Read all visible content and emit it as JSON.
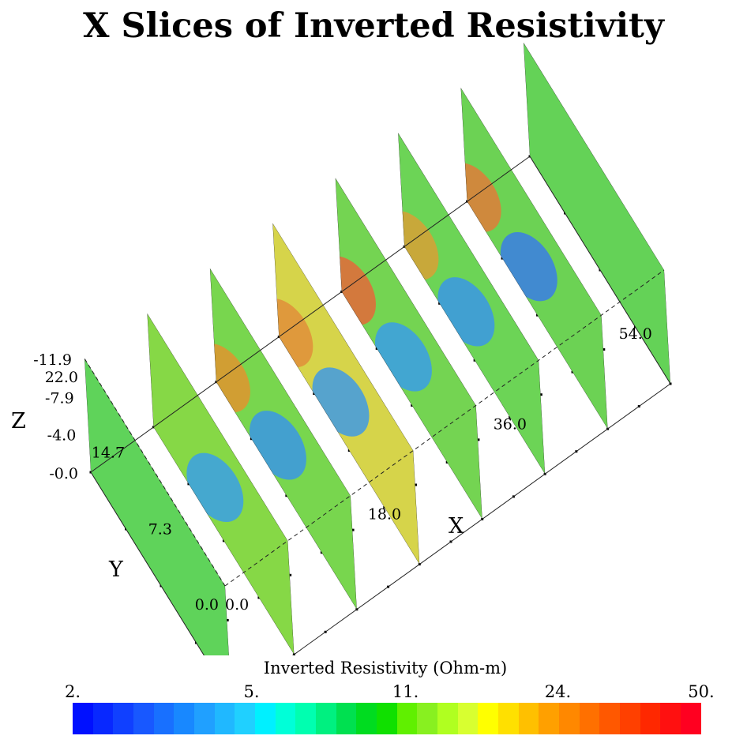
{
  "chart_data": {
    "type": "heatmap",
    "title": "X Slices of Inverted Resistivity",
    "xlabel": "X",
    "ylabel": "Y",
    "zlabel": "Z",
    "x_ticks": [
      "0.0",
      "18.0",
      "36.0",
      "54.0"
    ],
    "y_ticks": [
      "0.0",
      "7.3",
      "14.7",
      "22.0"
    ],
    "z_ticks": [
      "-0.0",
      "-4.0",
      "-7.9",
      "-11.9"
    ],
    "xlim": [
      0,
      63
    ],
    "ylim": [
      0,
      22
    ],
    "zlim": [
      -11.9,
      0
    ],
    "slices": [
      {
        "x": 0,
        "background": "#5fd35a",
        "anomalies": []
      },
      {
        "x": 9,
        "background": "#86d846",
        "anomalies": [
          {
            "y": 12,
            "z": -4.5,
            "value": 5,
            "color": "#3aa0e8"
          }
        ]
      },
      {
        "x": 18,
        "background": "#78d64e",
        "anomalies": [
          {
            "y": 12,
            "z": -4.2,
            "value": 5,
            "color": "#3a96e6"
          },
          {
            "y": 21,
            "z": -1.5,
            "value": 24,
            "color": "#e0942f"
          }
        ]
      },
      {
        "x": 27,
        "background": "#d6d44a",
        "anomalies": [
          {
            "y": 12,
            "z": -4.0,
            "value": 5,
            "color": "#3f9ae4"
          },
          {
            "y": 21,
            "z": -1.5,
            "value": 30,
            "color": "#e08e3a"
          }
        ]
      },
      {
        "x": 36,
        "background": "#74d452",
        "anomalies": [
          {
            "y": 12,
            "z": -4.0,
            "value": 5,
            "color": "#3a9de8"
          },
          {
            "y": 21,
            "z": -1.2,
            "value": 40,
            "color": "#e4683a"
          }
        ]
      },
      {
        "x": 45,
        "background": "#6cd456",
        "anomalies": [
          {
            "y": 12,
            "z": -4.0,
            "value": 5,
            "color": "#3a96e6"
          },
          {
            "y": 21,
            "z": -1.2,
            "value": 24,
            "color": "#d8a035"
          }
        ]
      },
      {
        "x": 54,
        "background": "#6cd254",
        "anomalies": [
          {
            "y": 12,
            "z": -4.0,
            "value": 4,
            "color": "#3a7ee6"
          },
          {
            "y": 21,
            "z": -1.5,
            "value": 30,
            "color": "#e07d3a"
          }
        ]
      },
      {
        "x": 63,
        "background": "#64d257",
        "anomalies": []
      }
    ],
    "colorbar": {
      "title": "Inverted Resistivity (Ohm-m)",
      "ticks": [
        {
          "label": "2.",
          "value": 2
        },
        {
          "label": "5.",
          "value": 5
        },
        {
          "label": "11.",
          "value": 11
        },
        {
          "label": "24.",
          "value": 24
        },
        {
          "label": "50.",
          "value": 50
        }
      ],
      "scale": "log",
      "colors": [
        "#0010ff",
        "#0828ff",
        "#1040ff",
        "#1858ff",
        "#1870ff",
        "#1888ff",
        "#20a0ff",
        "#20b8ff",
        "#20d0ff",
        "#00f0ff",
        "#00ffd8",
        "#00ffb0",
        "#00f080",
        "#00e050",
        "#00dc20",
        "#10e000",
        "#60f000",
        "#88f020",
        "#b0ff20",
        "#d8ff30",
        "#ffff00",
        "#ffe000",
        "#ffc000",
        "#ffa000",
        "#ff8800",
        "#ff7000",
        "#ff5800",
        "#ff4000",
        "#ff2800",
        "#ff1010",
        "#ff0020"
      ]
    }
  }
}
